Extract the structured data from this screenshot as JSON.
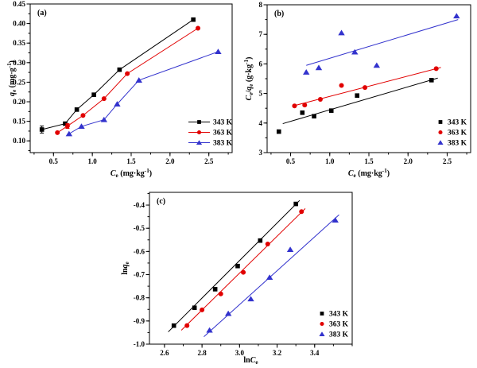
{
  "figure": {
    "background": "#ffffff",
    "series_colors": {
      "343 K": "#000000",
      "363 K": "#e10000",
      "383 K": "#3232cd"
    }
  },
  "chart_data": [
    {
      "id": "a",
      "type": "scatter",
      "panel_label": "(a)",
      "xlabel": "$C$_{e} (mg·kg^{-1})",
      "ylabel": "$q$_{e} (mg·g^{-1})",
      "xlim": [
        0.2,
        2.8
      ],
      "ylim": [
        0.07,
        0.45
      ],
      "xticks": [
        0.5,
        1.0,
        1.5,
        2.0,
        2.5
      ],
      "xtick_labels": [
        "0.5",
        "1.0",
        "1.5",
        "2.0",
        "2.5"
      ],
      "yticks": [
        0.1,
        0.15,
        0.2,
        0.25,
        0.3,
        0.35,
        0.4,
        0.45
      ],
      "ytick_labels": [
        "0.10",
        "0.15",
        "0.20",
        "0.25",
        "0.30",
        "0.35",
        "0.40",
        "0.45"
      ],
      "x_minor": 0.25,
      "y_minor": 0.025,
      "grid": false,
      "connect": true,
      "legend": {
        "position": "lower-right",
        "style": "line-marker",
        "entries": [
          "343 K",
          "363 K",
          "383 K"
        ]
      },
      "series": [
        {
          "name": "343 K",
          "color": "#000000",
          "marker": "square",
          "points": [
            [
              0.35,
              0.129
            ],
            [
              0.65,
              0.144
            ],
            [
              0.8,
              0.18
            ],
            [
              1.02,
              0.218
            ],
            [
              1.35,
              0.282
            ],
            [
              2.3,
              0.41
            ]
          ],
          "yerr": [
            0.009,
            0,
            0,
            0,
            0,
            0
          ]
        },
        {
          "name": "363 K",
          "color": "#e10000",
          "marker": "circle",
          "points": [
            [
              0.55,
              0.121
            ],
            [
              0.68,
              0.138
            ],
            [
              0.88,
              0.165
            ],
            [
              1.15,
              0.208
            ],
            [
              1.45,
              0.272
            ],
            [
              2.36,
              0.388
            ]
          ],
          "yerr": [
            0,
            0.006,
            0,
            0,
            0,
            0
          ]
        },
        {
          "name": "383 K",
          "color": "#3232cd",
          "marker": "triangle",
          "points": [
            [
              0.7,
              0.118
            ],
            [
              0.86,
              0.137
            ],
            [
              1.15,
              0.154
            ],
            [
              1.32,
              0.194
            ],
            [
              1.6,
              0.255
            ],
            [
              2.62,
              0.328
            ]
          ]
        }
      ]
    },
    {
      "id": "b",
      "type": "scatter",
      "panel_label": "(b)",
      "xlabel": "$C$_{e} (mg·kg^{-1})",
      "ylabel": "$C$_{e}/$q$_{e} (g·kg^{-1})",
      "xlim": [
        0.2,
        2.8
      ],
      "ylim": [
        3,
        8
      ],
      "xticks": [
        0.5,
        1.0,
        1.5,
        2.0,
        2.5
      ],
      "xtick_labels": [
        "0.5",
        "1.0",
        "1.5",
        "2.0",
        "2.5"
      ],
      "yticks": [
        3,
        4,
        5,
        6,
        7,
        8
      ],
      "ytick_labels": [
        "3",
        "4",
        "5",
        "6",
        "7",
        "8"
      ],
      "x_minor": 0.25,
      "y_minor": 0.5,
      "grid": false,
      "connect": false,
      "legend": {
        "position": "lower-right",
        "style": "marker",
        "entries": [
          "343 K",
          "363 K",
          "383 K"
        ]
      },
      "series": [
        {
          "name": "343 K",
          "color": "#000000",
          "marker": "square",
          "points": [
            [
              0.35,
              3.71
            ],
            [
              0.65,
              4.35
            ],
            [
              0.8,
              4.23
            ],
            [
              1.02,
              4.42
            ],
            [
              1.35,
              4.93
            ],
            [
              2.3,
              5.45
            ]
          ],
          "fit": [
            [
              0.4,
              3.98
            ],
            [
              2.38,
              5.52
            ]
          ]
        },
        {
          "name": "363 K",
          "color": "#e10000",
          "marker": "circle",
          "points": [
            [
              0.55,
              4.58
            ],
            [
              0.68,
              4.61
            ],
            [
              0.88,
              4.8
            ],
            [
              1.15,
              5.27
            ],
            [
              1.45,
              5.2
            ],
            [
              2.36,
              5.84
            ]
          ],
          "fit": [
            [
              0.52,
              4.57
            ],
            [
              2.42,
              5.88
            ]
          ]
        },
        {
          "name": "383 K",
          "color": "#3232cd",
          "marker": "triangle",
          "points": [
            [
              0.7,
              5.72
            ],
            [
              0.86,
              5.87
            ],
            [
              1.15,
              7.05
            ],
            [
              1.32,
              6.4
            ],
            [
              1.6,
              5.95
            ],
            [
              2.62,
              7.62
            ]
          ],
          "fit": [
            [
              0.7,
              5.95
            ],
            [
              2.64,
              7.5
            ]
          ]
        }
      ]
    },
    {
      "id": "c",
      "type": "scatter",
      "panel_label": "(c)",
      "xlabel": "ln$C$_{e}",
      "ylabel": "ln$q$_{e}",
      "xlim": [
        2.52,
        3.6
      ],
      "ylim": [
        -1.0,
        -0.345
      ],
      "xticks": [
        2.6,
        2.8,
        3.0,
        3.2,
        3.4
      ],
      "xtick_labels": [
        "2.6",
        "2.8",
        "3.0",
        "3.2",
        "3.4"
      ],
      "yticks": [
        -1.0,
        -0.9,
        -0.8,
        -0.7,
        -0.6,
        -0.5,
        -0.4
      ],
      "ytick_labels": [
        "-1.0",
        "-0.9",
        "-0.8",
        "-0.7",
        "-0.6",
        "-0.5",
        "-0.4"
      ],
      "x_minor": 0.1,
      "y_minor": 0.05,
      "grid": false,
      "connect": false,
      "legend": {
        "position": "lower-right",
        "style": "marker",
        "entries": [
          "343 K",
          "363 K",
          "383 K"
        ]
      },
      "series": [
        {
          "name": "343 K",
          "color": "#000000",
          "marker": "square",
          "points": [
            [
              2.65,
              -0.92
            ],
            [
              2.76,
              -0.843
            ],
            [
              2.87,
              -0.763
            ],
            [
              2.99,
              -0.663
            ],
            [
              3.11,
              -0.553
            ],
            [
              3.3,
              -0.395
            ]
          ],
          "fit": [
            [
              2.62,
              -0.947
            ],
            [
              3.32,
              -0.38
            ]
          ]
        },
        {
          "name": "363 K",
          "color": "#e10000",
          "marker": "circle",
          "points": [
            [
              2.72,
              -0.92
            ],
            [
              2.8,
              -0.852
            ],
            [
              2.9,
              -0.783
            ],
            [
              3.02,
              -0.69
            ],
            [
              3.15,
              -0.568
            ],
            [
              3.33,
              -0.428
            ]
          ],
          "fit": [
            [
              2.69,
              -0.94
            ],
            [
              3.35,
              -0.415
            ]
          ]
        },
        {
          "name": "383 K",
          "color": "#3232cd",
          "marker": "triangle",
          "points": [
            [
              2.84,
              -0.94
            ],
            [
              2.94,
              -0.868
            ],
            [
              3.06,
              -0.805
            ],
            [
              3.16,
              -0.712
            ],
            [
              3.27,
              -0.592
            ],
            [
              3.51,
              -0.465
            ]
          ],
          "fit": [
            [
              2.81,
              -0.968
            ],
            [
              3.53,
              -0.442
            ]
          ]
        }
      ]
    }
  ]
}
